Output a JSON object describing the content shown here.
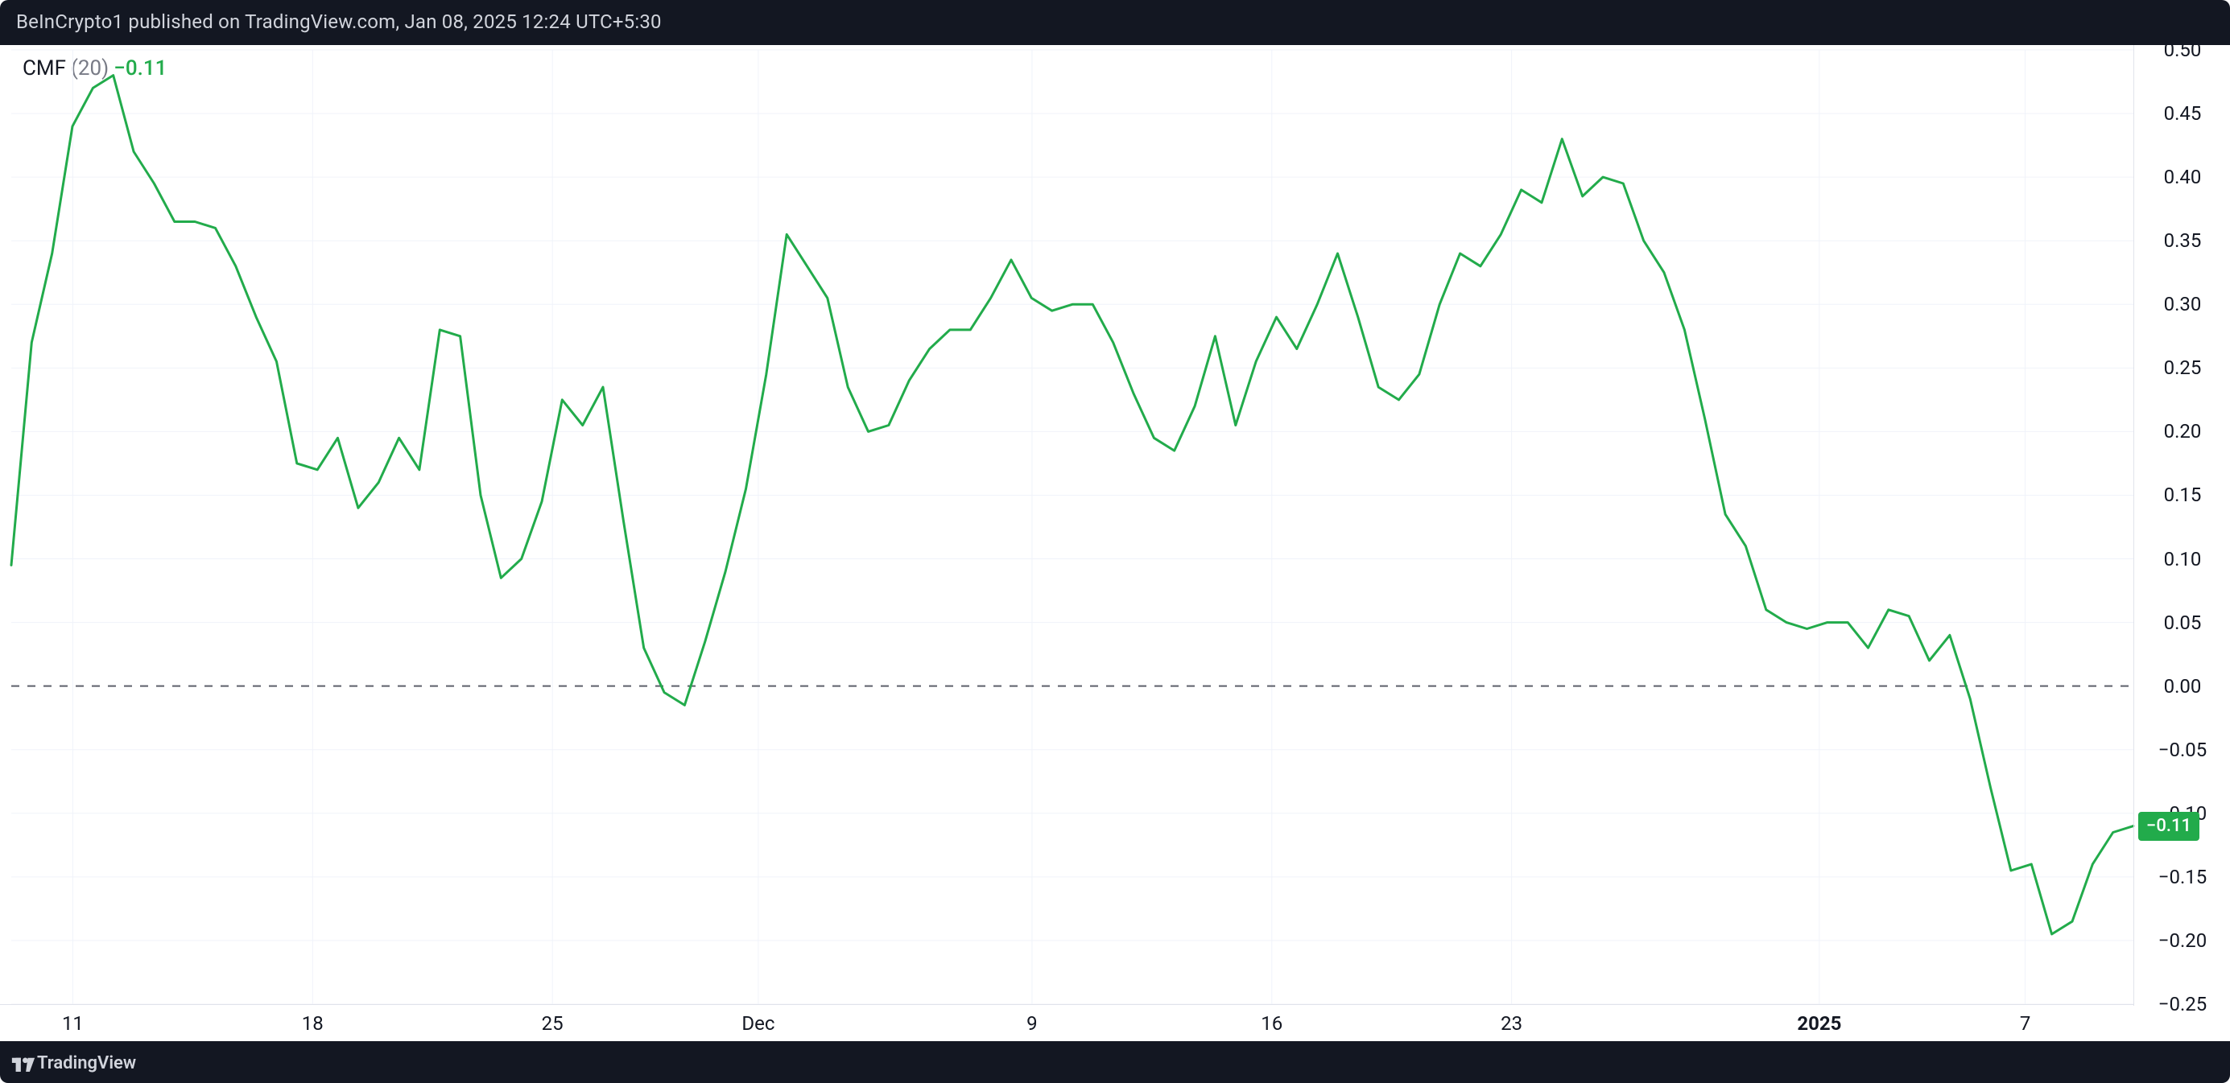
{
  "attribution": {
    "text": "BeInCrypto1 published on TradingView.com, Jan 08, 2025 12:24 UTC+5:30"
  },
  "footer": {
    "brand": "TradingView"
  },
  "legend": {
    "indicator": "CMF",
    "param": "(20)",
    "value": "−0.11"
  },
  "chart": {
    "type": "line",
    "line_color": "#22ab4b",
    "line_width": 3,
    "background_color": "#ffffff",
    "grid_color": "#f0f3fa",
    "axis_text_color": "#131722",
    "zero_line_color": "#5d606b",
    "y_axis": {
      "min": -0.25,
      "max": 0.5,
      "step": 0.05,
      "labels": [
        "0.50",
        "0.45",
        "0.40",
        "0.35",
        "0.30",
        "0.25",
        "0.20",
        "0.15",
        "0.10",
        "0.05",
        "0.00",
        "−0.05",
        "−0.10",
        "−0.15",
        "−0.20",
        "−0.25"
      ],
      "values": [
        0.5,
        0.45,
        0.4,
        0.35,
        0.3,
        0.25,
        0.2,
        0.15,
        0.1,
        0.05,
        0.0,
        -0.05,
        -0.1,
        -0.15,
        -0.2,
        -0.25
      ]
    },
    "x_axis": {
      "ticks": [
        {
          "label": "11",
          "pos": 0.029,
          "bold": false
        },
        {
          "label": "18",
          "pos": 0.142,
          "bold": false
        },
        {
          "label": "25",
          "pos": 0.255,
          "bold": false
        },
        {
          "label": "Dec",
          "pos": 0.352,
          "bold": false
        },
        {
          "label": "9",
          "pos": 0.481,
          "bold": false
        },
        {
          "label": "16",
          "pos": 0.594,
          "bold": false
        },
        {
          "label": "23",
          "pos": 0.707,
          "bold": false
        },
        {
          "label": "2025",
          "pos": 0.852,
          "bold": true
        },
        {
          "label": "7",
          "pos": 0.949,
          "bold": false
        }
      ]
    },
    "price_tag": {
      "text": "−0.11",
      "value": -0.11,
      "bg_color": "#22ab4b"
    },
    "series": [
      0.095,
      0.27,
      0.34,
      0.44,
      0.47,
      0.48,
      0.42,
      0.395,
      0.365,
      0.365,
      0.36,
      0.33,
      0.29,
      0.255,
      0.175,
      0.17,
      0.195,
      0.14,
      0.16,
      0.195,
      0.17,
      0.28,
      0.275,
      0.15,
      0.085,
      0.1,
      0.145,
      0.225,
      0.205,
      0.235,
      0.13,
      0.03,
      -0.005,
      -0.015,
      0.035,
      0.09,
      0.155,
      0.245,
      0.355,
      0.33,
      0.305,
      0.235,
      0.2,
      0.205,
      0.24,
      0.265,
      0.28,
      0.28,
      0.305,
      0.335,
      0.305,
      0.295,
      0.3,
      0.3,
      0.27,
      0.23,
      0.195,
      0.185,
      0.22,
      0.275,
      0.205,
      0.255,
      0.29,
      0.265,
      0.3,
      0.34,
      0.29,
      0.235,
      0.225,
      0.245,
      0.3,
      0.34,
      0.33,
      0.355,
      0.39,
      0.38,
      0.43,
      0.385,
      0.4,
      0.395,
      0.35,
      0.325,
      0.28,
      0.21,
      0.135,
      0.11,
      0.06,
      0.05,
      0.045,
      0.05,
      0.05,
      0.03,
      0.06,
      0.055,
      0.02,
      0.04,
      -0.01,
      -0.08,
      -0.145,
      -0.14,
      -0.195,
      -0.185,
      -0.14,
      -0.115,
      -0.11
    ]
  }
}
